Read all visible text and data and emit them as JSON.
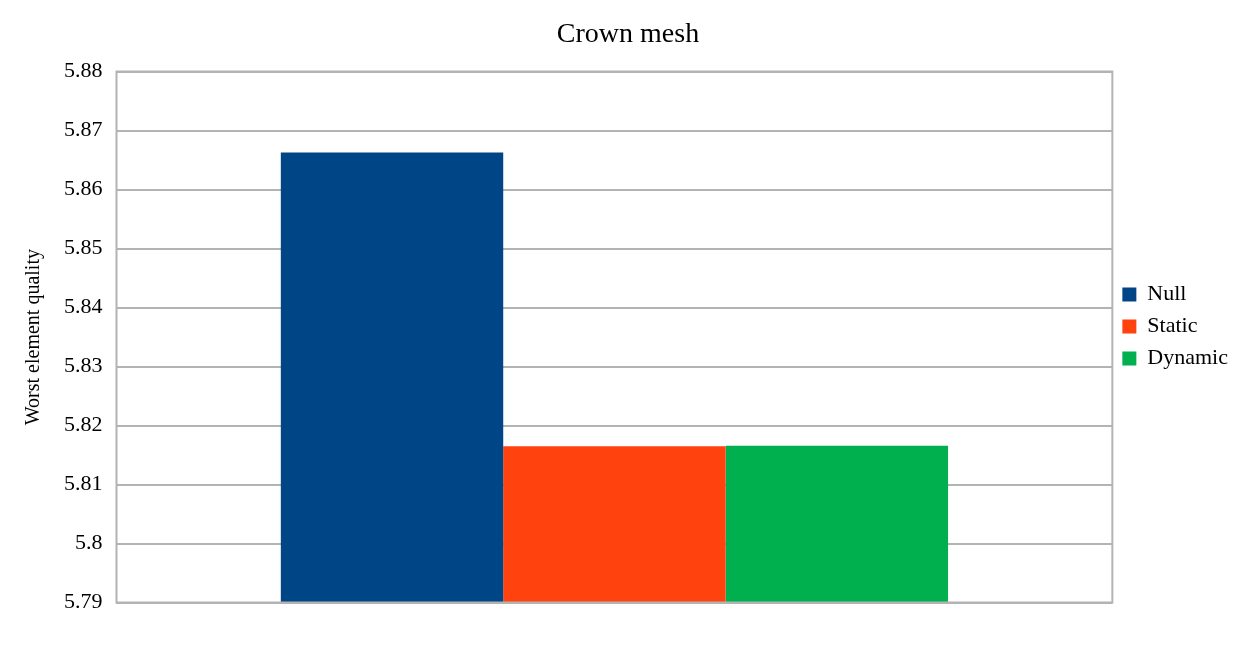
{
  "chart_data": {
    "type": "bar",
    "title": "Crown mesh",
    "ylabel": "Worst element quality",
    "categories": [
      null
    ],
    "series": [
      {
        "name": "Null",
        "color": "#004586",
        "values": [
          5.8663
        ]
      },
      {
        "name": "Static",
        "color": "#ff420e",
        "values": [
          5.8165
        ]
      },
      {
        "name": "Dynamic",
        "color": "#00b04f",
        "values": [
          5.8166
        ]
      }
    ],
    "ylim": [
      5.79,
      5.88
    ],
    "yticks": [
      5.79,
      5.8,
      5.81,
      5.82,
      5.83,
      5.84,
      5.85,
      5.86,
      5.87,
      5.88
    ],
    "grid": "y",
    "legend": "right"
  }
}
